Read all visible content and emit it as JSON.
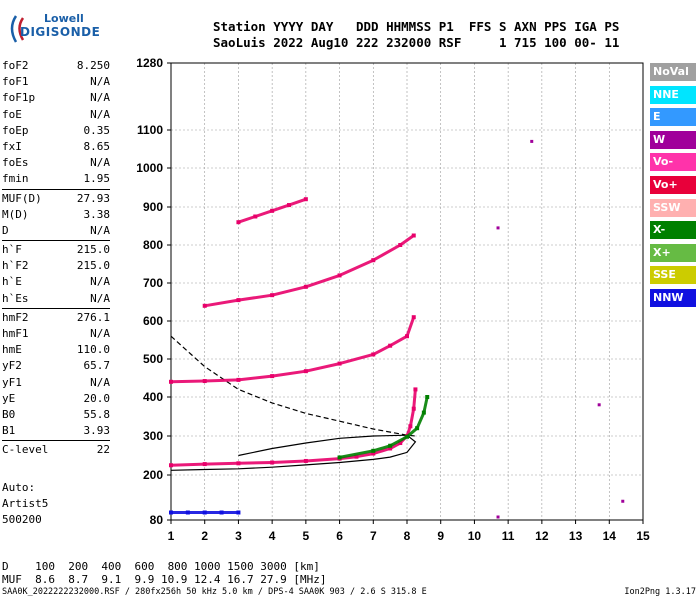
{
  "logo": {
    "line1": "Lowell",
    "line2": "DIGISONDE"
  },
  "header": {
    "line1": "Station YYYY DAY   DDD HHMMSS P1  FFS S AXN PPS IGA PS",
    "line2": "SaoLuis 2022 Aug10 222 232000 RSF     1 715 100 00- 11"
  },
  "params": {
    "group1": [
      [
        "foF2",
        "8.250"
      ],
      [
        "foF1",
        "N/A"
      ],
      [
        "foF1p",
        "N/A"
      ],
      [
        "foE",
        "N/A"
      ],
      [
        "foEp",
        "0.35"
      ],
      [
        "fxI",
        "8.65"
      ],
      [
        "foEs",
        "N/A"
      ],
      [
        "fmin",
        "1.95"
      ]
    ],
    "group2": [
      [
        "MUF(D)",
        "27.93"
      ],
      [
        "M(D)",
        "3.38"
      ],
      [
        "D",
        "N/A"
      ]
    ],
    "group3": [
      [
        "h`F",
        "215.0"
      ],
      [
        "h`F2",
        "215.0"
      ],
      [
        "h`E",
        "N/A"
      ],
      [
        "h`Es",
        "N/A"
      ]
    ],
    "group4": [
      [
        "hmF2",
        "276.1"
      ],
      [
        "hmF1",
        "N/A"
      ],
      [
        "hmE",
        "110.0"
      ],
      [
        "yF2",
        "65.7"
      ],
      [
        "yF1",
        "N/A"
      ],
      [
        "yE",
        "20.0"
      ],
      [
        "B0",
        "55.8"
      ],
      [
        "B1",
        "3.93"
      ]
    ],
    "group5": [
      [
        "C-level",
        "22"
      ]
    ]
  },
  "auto": {
    "line1": "Auto:",
    "line2": "Artist5",
    "line3": "500200"
  },
  "legend": [
    {
      "label": "NoVal",
      "color": "#a0a0a0"
    },
    {
      "label": "NNE",
      "color": "#00e5ff"
    },
    {
      "label": "E",
      "color": "#3399ff"
    },
    {
      "label": "W",
      "color": "#a0009a"
    },
    {
      "label": "Vo-",
      "color": "#ff33aa"
    },
    {
      "label": "Vo+",
      "color": "#e8003a"
    },
    {
      "label": "SSW",
      "color": "#ffb0b0"
    },
    {
      "label": "X-",
      "color": "#008000"
    },
    {
      "label": "X+",
      "color": "#66bb44"
    },
    {
      "label": "SSE",
      "color": "#cccc00"
    },
    {
      "label": "NNW",
      "color": "#1010e0"
    }
  ],
  "muf_table": {
    "d_line": "D    100  200  400  600  800 1000 1500 3000 [km]",
    "muf_line": "MUF  8.6  8.7  9.1  9.9 10.9 12.4 16.7 27.9 [MHz]"
  },
  "footer": "SAA0K_2022222232000.RSF / 280fx256h 50 kHz 5.0 km / DPS-4 SAA0K 903 / 2.6 S 315.8 E",
  "version": "Ion2Png 1.3.17",
  "chart_data": {
    "type": "scatter",
    "x_ticks": [
      1,
      2,
      3,
      4,
      5,
      6,
      7,
      8,
      9,
      10,
      11,
      12,
      13,
      14,
      15
    ],
    "y_ticks": [
      80,
      200,
      300,
      400,
      500,
      600,
      700,
      800,
      900,
      1000,
      1100,
      1280
    ],
    "xlim": [
      1,
      15
    ],
    "ylim": [
      80,
      1280
    ],
    "grid": true,
    "legend_position": "right",
    "traces": [
      {
        "name": "O-trace 1st hop",
        "color": "#e8006a",
        "x": [
          1.0,
          2.0,
          3.0,
          4.0,
          5.0,
          6.0,
          6.5,
          7.0,
          7.5,
          7.8,
          8.0,
          8.1,
          8.2,
          8.25
        ],
        "y": [
          225,
          228,
          230,
          232,
          236,
          242,
          247,
          255,
          268,
          282,
          300,
          325,
          370,
          420
        ]
      },
      {
        "name": "O-trace 2nd hop",
        "color": "#e8006a",
        "x": [
          1.0,
          2.0,
          3.0,
          4.0,
          5.0,
          6.0,
          7.0,
          7.5,
          8.0,
          8.2
        ],
        "y": [
          440,
          442,
          445,
          455,
          468,
          488,
          512,
          535,
          560,
          610
        ]
      },
      {
        "name": "O-trace 3rd hop",
        "color": "#e8006a",
        "x": [
          2.0,
          3.0,
          4.0,
          5.0,
          6.0,
          7.0,
          7.8,
          8.2
        ],
        "y": [
          640,
          655,
          668,
          690,
          720,
          760,
          800,
          825
        ]
      },
      {
        "name": "O-trace 4th hop",
        "color": "#e8006a",
        "x": [
          3.0,
          3.5,
          4.0,
          4.5,
          5.0
        ],
        "y": [
          860,
          875,
          890,
          905,
          920
        ]
      },
      {
        "name": "X-trace",
        "color": "#008000",
        "x": [
          6.0,
          7.0,
          7.5,
          8.0,
          8.3,
          8.5,
          8.6
        ],
        "y": [
          245,
          262,
          275,
          298,
          320,
          360,
          400
        ]
      },
      {
        "name": "Low-frequency echoes",
        "color": "#1010e0",
        "x": [
          1.0,
          1.5,
          2.0,
          2.5,
          3.0
        ],
        "y": [
          100,
          100,
          100,
          100,
          100
        ]
      }
    ],
    "profile_solid": {
      "x": [
        1.0,
        2.0,
        3.0,
        4.0,
        5.0,
        6.0,
        7.0,
        7.5,
        8.0,
        8.25,
        8.0,
        7.0,
        6.0,
        5.0,
        4.0,
        3.0
      ],
      "y": [
        212,
        214,
        216,
        220,
        226,
        232,
        240,
        246,
        258,
        285,
        302,
        300,
        294,
        282,
        268,
        250
      ]
    },
    "profile_dashed": {
      "x": [
        1.0,
        2.0,
        3.0,
        4.0,
        5.0,
        6.0,
        7.0,
        8.0,
        8.25
      ],
      "y": [
        560,
        480,
        420,
        385,
        358,
        338,
        318,
        302,
        300
      ]
    },
    "isolated_points": [
      {
        "x": 11.7,
        "y": 1070
      },
      {
        "x": 13.7,
        "y": 380
      },
      {
        "x": 14.4,
        "y": 130
      },
      {
        "x": 10.7,
        "y": 845
      },
      {
        "x": 10.7,
        "y": 88
      }
    ]
  }
}
